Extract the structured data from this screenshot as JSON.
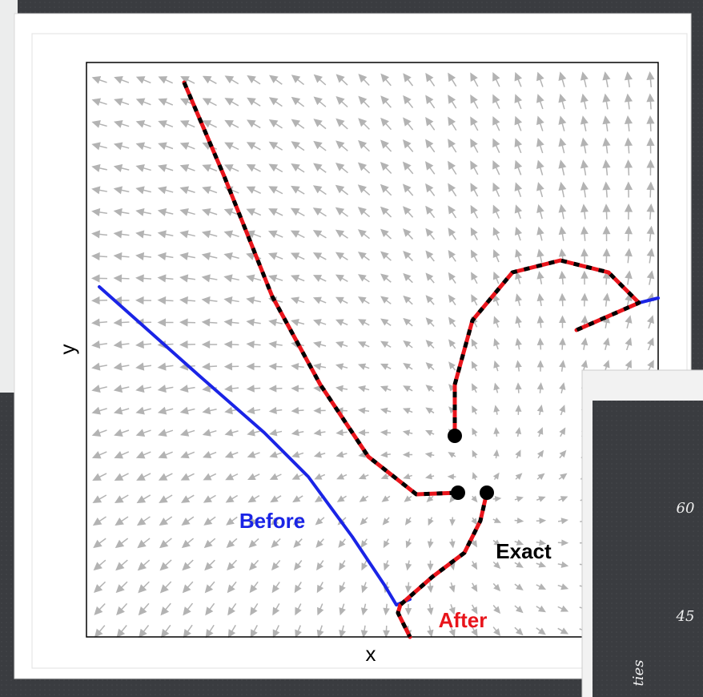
{
  "plot": {
    "x_label": "x",
    "y_label": "y",
    "labels": {
      "before": "Before",
      "exact": "Exact",
      "after": "After"
    }
  },
  "side_slide": {
    "ticks": [
      "60",
      "45"
    ],
    "axis_label_fragment": "ties"
  }
}
